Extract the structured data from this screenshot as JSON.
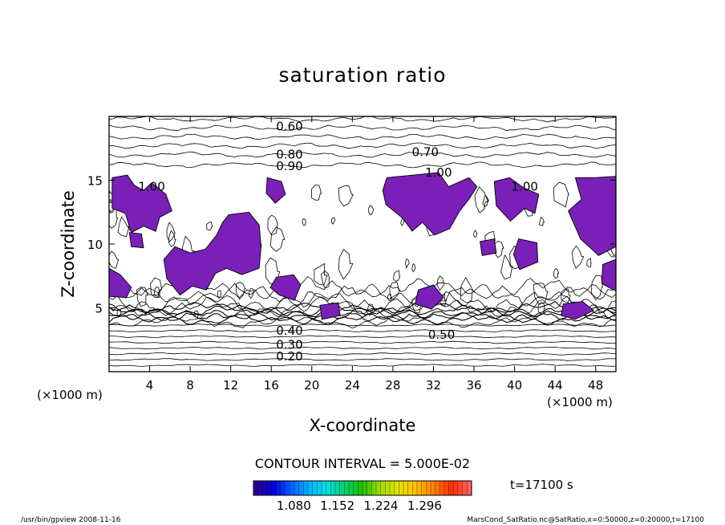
{
  "chart_data": {
    "type": "contour",
    "title": "saturation ratio",
    "xlabel": "X-coordinate",
    "ylabel": "Z-coordinate",
    "x_unit": "(×1000 m)",
    "y_unit": "(×1000 m)",
    "xlim": [
      0,
      50
    ],
    "ylim": [
      0,
      20
    ],
    "x_ticks": [
      "4",
      "8",
      "12",
      "16",
      "20",
      "24",
      "28",
      "32",
      "36",
      "40",
      "44",
      "48"
    ],
    "y_ticks": [
      "5",
      "10",
      "15"
    ],
    "contour_interval_text": "CONTOUR INTERVAL = 5.000E-02",
    "contour_labels": [
      {
        "text": "0.60",
        "x": 17.8,
        "z": 19.2
      },
      {
        "text": "0.80",
        "x": 17.8,
        "z": 17.0
      },
      {
        "text": "0.90",
        "x": 17.8,
        "z": 16.1
      },
      {
        "text": "0.70",
        "x": 31.2,
        "z": 17.2
      },
      {
        "text": "1.00",
        "x": 32.5,
        "z": 15.6
      },
      {
        "text": "1.00",
        "x": 4.2,
        "z": 14.5
      },
      {
        "text": "1.00",
        "x": 41.0,
        "z": 14.5
      },
      {
        "text": "0.50",
        "x": 32.8,
        "z": 2.9
      },
      {
        "text": "0.40",
        "x": 17.8,
        "z": 3.2
      },
      {
        "text": "0.30",
        "x": 17.8,
        "z": 2.1
      },
      {
        "text": "0.20",
        "x": 17.8,
        "z": 1.2
      }
    ],
    "supersaturated_regions": [
      [
        [
          0.3,
          15.2
        ],
        [
          1.8,
          15.4
        ],
        [
          2.5,
          14.6
        ],
        [
          3.4,
          14.2
        ],
        [
          4.2,
          14.8
        ],
        [
          5.6,
          13.9
        ],
        [
          6.2,
          12.6
        ],
        [
          5.0,
          12.1
        ],
        [
          4.6,
          11.0
        ],
        [
          3.4,
          11.4
        ],
        [
          2.2,
          10.9
        ],
        [
          1.6,
          12.4
        ],
        [
          0.3,
          12.8
        ]
      ],
      [
        [
          11.8,
          12.3
        ],
        [
          13.8,
          12.5
        ],
        [
          14.8,
          11.5
        ],
        [
          15.0,
          9.8
        ],
        [
          14.8,
          8.1
        ],
        [
          13.1,
          7.6
        ],
        [
          11.6,
          8.1
        ],
        [
          10.5,
          7.7
        ],
        [
          9.6,
          6.4
        ],
        [
          8.2,
          6.7
        ],
        [
          7.0,
          6.0
        ],
        [
          5.7,
          7.3
        ],
        [
          5.4,
          8.8
        ],
        [
          6.5,
          9.8
        ],
        [
          8.0,
          9.3
        ],
        [
          9.5,
          9.6
        ],
        [
          10.6,
          10.7
        ],
        [
          11.2,
          11.7
        ]
      ],
      [
        [
          15.6,
          15.2
        ],
        [
          17.0,
          14.9
        ],
        [
          17.4,
          13.9
        ],
        [
          16.4,
          13.2
        ],
        [
          15.5,
          14.0
        ]
      ],
      [
        [
          16.5,
          7.4
        ],
        [
          18.2,
          7.6
        ],
        [
          18.9,
          6.8
        ],
        [
          18.3,
          5.6
        ],
        [
          16.8,
          6.0
        ],
        [
          15.9,
          6.6
        ]
      ],
      [
        [
          27.4,
          15.2
        ],
        [
          32.5,
          15.6
        ],
        [
          33.5,
          14.5
        ],
        [
          35.5,
          15.2
        ],
        [
          36.3,
          14.5
        ],
        [
          35.5,
          13.5
        ],
        [
          34.6,
          12.6
        ],
        [
          33.6,
          11.2
        ],
        [
          32.1,
          10.7
        ],
        [
          30.9,
          11.7
        ],
        [
          29.9,
          11.0
        ],
        [
          29.0,
          12.0
        ],
        [
          27.3,
          13.1
        ],
        [
          27.0,
          14.2
        ]
      ],
      [
        [
          38.0,
          14.9
        ],
        [
          39.5,
          15.2
        ],
        [
          40.9,
          14.4
        ],
        [
          42.4,
          13.9
        ],
        [
          42.0,
          12.4
        ],
        [
          41.0,
          12.8
        ],
        [
          39.6,
          11.8
        ],
        [
          38.2,
          13.0
        ]
      ],
      [
        [
          40.4,
          10.4
        ],
        [
          42.2,
          10.1
        ],
        [
          42.3,
          8.6
        ],
        [
          40.5,
          8.0
        ],
        [
          39.9,
          9.2
        ]
      ],
      [
        [
          46.0,
          15.2
        ],
        [
          47.9,
          15.2
        ],
        [
          50.0,
          15.3
        ],
        [
          50.0,
          9.8
        ],
        [
          48.3,
          9.1
        ],
        [
          46.5,
          10.4
        ],
        [
          45.3,
          12.6
        ],
        [
          46.6,
          13.5
        ]
      ],
      [
        [
          0.0,
          8.1
        ],
        [
          1.1,
          7.6
        ],
        [
          2.2,
          6.6
        ],
        [
          1.7,
          5.8
        ],
        [
          0.0,
          5.9
        ]
      ],
      [
        [
          20.8,
          5.2
        ],
        [
          22.6,
          5.4
        ],
        [
          22.8,
          4.4
        ],
        [
          21.0,
          4.1
        ]
      ],
      [
        [
          30.5,
          6.4
        ],
        [
          32.0,
          6.8
        ],
        [
          33.0,
          5.8
        ],
        [
          31.8,
          4.9
        ],
        [
          30.2,
          5.3
        ]
      ],
      [
        [
          44.8,
          5.3
        ],
        [
          46.7,
          5.5
        ],
        [
          47.8,
          4.8
        ],
        [
          46.0,
          4.1
        ],
        [
          44.6,
          4.4
        ]
      ],
      [
        [
          36.6,
          10.2
        ],
        [
          38.0,
          10.4
        ],
        [
          38.2,
          9.3
        ],
        [
          36.8,
          9.1
        ]
      ],
      [
        [
          2.0,
          10.9
        ],
        [
          3.2,
          10.8
        ],
        [
          3.4,
          9.7
        ],
        [
          2.2,
          9.8
        ]
      ],
      [
        [
          48.7,
          8.4
        ],
        [
          50.0,
          8.8
        ],
        [
          50.0,
          6.3
        ],
        [
          48.6,
          6.9
        ]
      ]
    ],
    "colorbar": {
      "ticks": [
        "1.080",
        "1.152",
        "1.224",
        "1.296"
      ],
      "colors": [
        "#2a0090",
        "#0000e0",
        "#0060ff",
        "#00b4ff",
        "#00e0e0",
        "#00d070",
        "#20c000",
        "#a0e000",
        "#e0e000",
        "#ffc000",
        "#ff8000",
        "#ff3000",
        "#ff6060"
      ]
    },
    "time_text": "t=17100 s",
    "fill_color": "#7a1fb8"
  },
  "footer": {
    "left": "/usr/bin/gpview  2008-11-16",
    "right": "MarsCond_SatRatio.nc@SatRatio,x=0:50000,z=0:20000,t=17100"
  }
}
